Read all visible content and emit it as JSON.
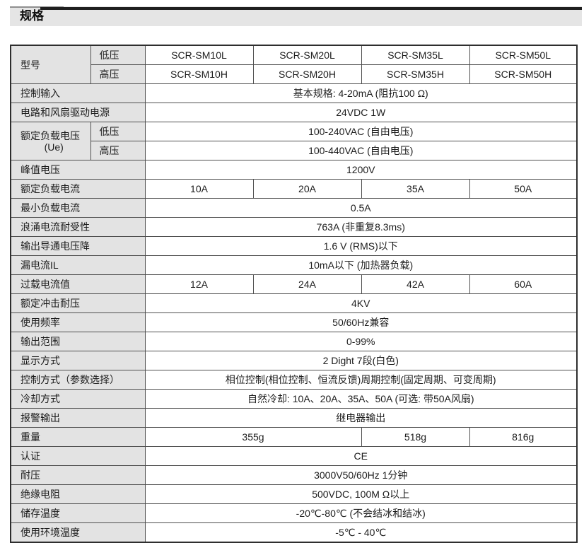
{
  "page_title": "规格",
  "colors": {
    "title_bar_bg": "#e5e5e5",
    "label_cell_bg": "#e3e3e3",
    "table_border": "#4f4f4f",
    "table_outer_border": "#2e2e2e",
    "accent_rule": "#1f1f1f",
    "text": "#1c1c1c"
  },
  "table": {
    "rows": [
      {
        "label": "型号",
        "rowspan": 2,
        "sublabel": "低压",
        "values": [
          {
            "text": "SCR-SM10L"
          },
          {
            "text": "SCR-SM20L"
          },
          {
            "text": "SCR-SM35L"
          },
          {
            "text": "SCR-SM50L"
          }
        ]
      },
      {
        "sublabel": "高压",
        "values": [
          {
            "text": "SCR-SM10H"
          },
          {
            "text": "SCR-SM20H"
          },
          {
            "text": "SCR-SM35H"
          },
          {
            "text": "SCR-SM50H"
          }
        ]
      },
      {
        "label": "控制输入",
        "values": [
          {
            "text": "基本规格: 4-20mA (阻抗100 Ω)",
            "span": 4
          }
        ]
      },
      {
        "label": "电路和风扇驱动电源",
        "values": [
          {
            "text": "24VDC 1W",
            "span": 4
          }
        ]
      },
      {
        "label": "额定负载电压",
        "label2": "(Ue)",
        "rowspan": 2,
        "sublabel": "低压",
        "values": [
          {
            "text": "100-240VAC (自由电压)",
            "span": 4
          }
        ]
      },
      {
        "sublabel": "高压",
        "values": [
          {
            "text": "100-440VAC (自由电压)",
            "span": 4
          }
        ]
      },
      {
        "label": "峰值电压",
        "values": [
          {
            "text": "1200V",
            "span": 4
          }
        ]
      },
      {
        "label": "额定负载电流",
        "values": [
          {
            "text": "10A"
          },
          {
            "text": "20A"
          },
          {
            "text": "35A"
          },
          {
            "text": "50A"
          }
        ]
      },
      {
        "label": "最小负载电流",
        "values": [
          {
            "text": "0.5A",
            "span": 4
          }
        ]
      },
      {
        "label": "浪涌电流耐受性",
        "values": [
          {
            "text": "763A (非重复8.3ms)",
            "span": 4
          }
        ]
      },
      {
        "label": "输出导通电压降",
        "values": [
          {
            "text": "1.6 V (RMS)以下",
            "span": 4
          }
        ]
      },
      {
        "label": "漏电流IL",
        "values": [
          {
            "text": "10mA以下 (加热器负载)",
            "span": 4
          }
        ]
      },
      {
        "label": "过载电流值",
        "values": [
          {
            "text": "12A"
          },
          {
            "text": "24A"
          },
          {
            "text": "42A"
          },
          {
            "text": "60A"
          }
        ]
      },
      {
        "label": "额定冲击耐压",
        "values": [
          {
            "text": "4KV",
            "span": 4
          }
        ]
      },
      {
        "label": "使用频率",
        "values": [
          {
            "text": "50/60Hz兼容",
            "span": 4
          }
        ]
      },
      {
        "label": "输出范围",
        "values": [
          {
            "text": "0-99%",
            "span": 4
          }
        ]
      },
      {
        "label": "显示方式",
        "values": [
          {
            "text": "2 Dight 7段(白色)",
            "span": 4
          }
        ]
      },
      {
        "label": "控制方式（参数选择）",
        "values": [
          {
            "text": "相位控制(相位控制、恒流反馈)周期控制(固定周期、可变周期)",
            "span": 4
          }
        ]
      },
      {
        "label": "冷却方式",
        "values": [
          {
            "text": "自然冷却: 10A、20A、35A、50A (可选: 带50A风扇)",
            "span": 4
          }
        ]
      },
      {
        "label": "报警输出",
        "values": [
          {
            "text": "继电器输出",
            "span": 4
          }
        ]
      },
      {
        "label": "重量",
        "values": [
          {
            "text": "355g",
            "span": 2
          },
          {
            "text": "518g"
          },
          {
            "text": "816g"
          }
        ]
      },
      {
        "label": "认证",
        "values": [
          {
            "text": "CE",
            "span": 4
          }
        ]
      },
      {
        "label": "耐压",
        "values": [
          {
            "text": "3000V50/60Hz 1分钟",
            "span": 4
          }
        ]
      },
      {
        "label": "绝缘电阻",
        "values": [
          {
            "text": "500VDC, 100M Ω以上",
            "span": 4
          }
        ]
      },
      {
        "label": "储存温度",
        "values": [
          {
            "text": "-20℃-80℃ (不会结冰和结冰)",
            "span": 4
          }
        ]
      },
      {
        "label": "使用环境温度",
        "values": [
          {
            "text": "-5℃ - 40℃",
            "span": 4
          }
        ]
      }
    ]
  }
}
